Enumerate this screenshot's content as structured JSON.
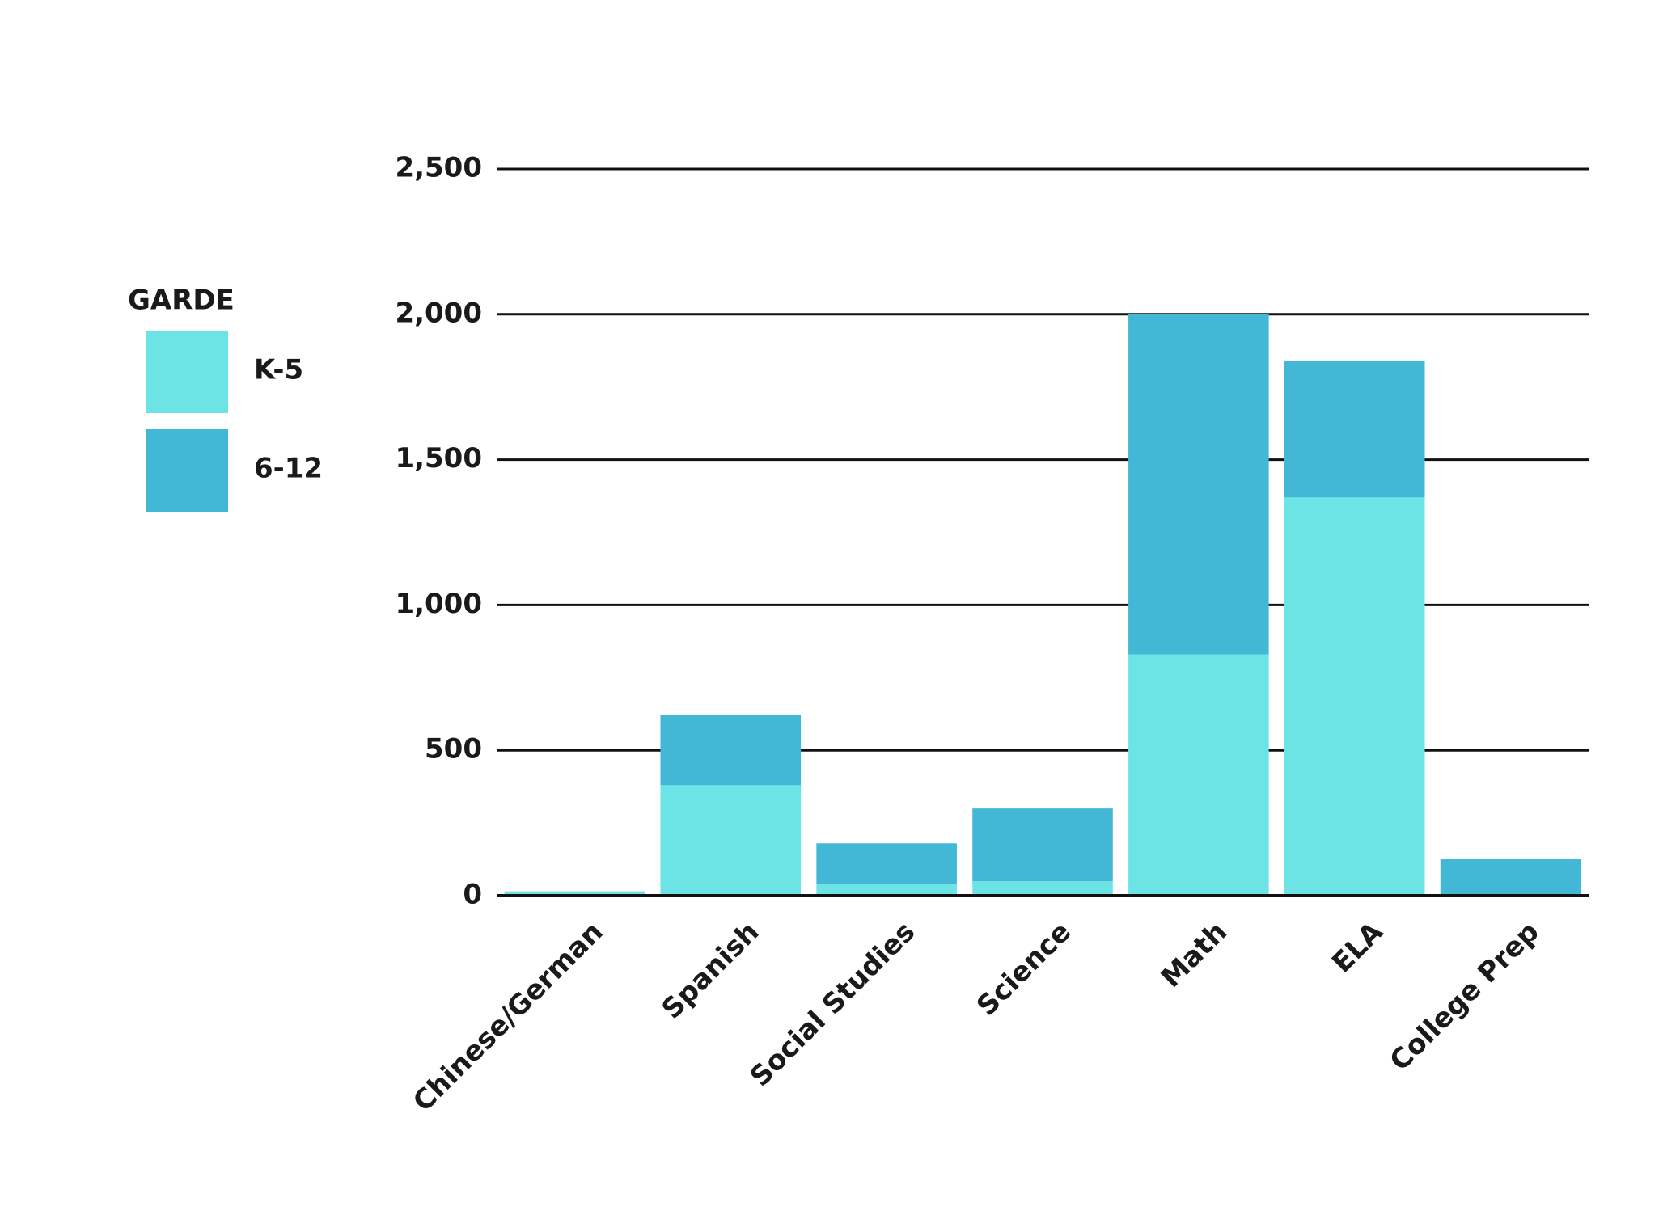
{
  "chart_data": {
    "type": "stacked_bar",
    "legend_title": "GARDE",
    "categories": [
      "Chinese/German",
      "Spanish",
      "Social Studies",
      "Science",
      "Math",
      "ELA",
      "College Prep"
    ],
    "series": [
      {
        "name": "K-5",
        "color": "#6ce4e6",
        "values": [
          15,
          380,
          40,
          50,
          830,
          1370,
          0
        ]
      },
      {
        "name": "6-12",
        "color": "#42b8d6",
        "values": [
          0,
          240,
          140,
          250,
          1170,
          470,
          125
        ]
      }
    ],
    "ylim": [
      0,
      2500
    ],
    "yticks": [
      0,
      500,
      {
        "value": 1000,
        "label": "1,000"
      },
      {
        "value": 1500,
        "label": "1,500"
      },
      {
        "value": 2000,
        "label": "2,000"
      },
      {
        "value": 2500,
        "label": "2,500"
      }
    ],
    "grid": true,
    "legend_position": "left"
  }
}
